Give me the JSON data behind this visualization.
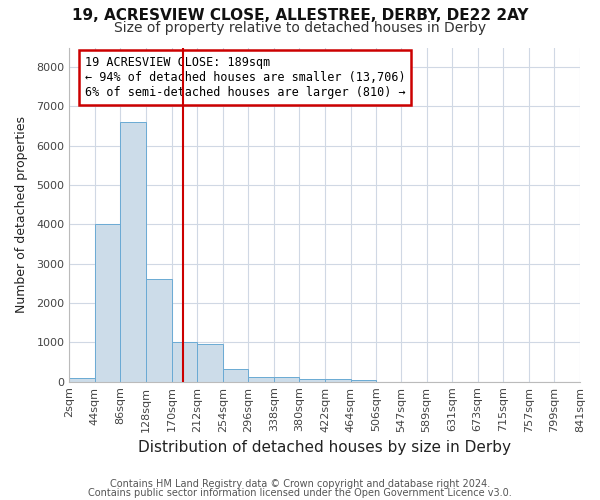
{
  "title1": "19, ACRESVIEW CLOSE, ALLESTREE, DERBY, DE22 2AY",
  "title2": "Size of property relative to detached houses in Derby",
  "xlabel": "Distribution of detached houses by size in Derby",
  "ylabel": "Number of detached properties",
  "bin_edges": [
    2,
    44,
    86,
    128,
    170,
    212,
    254,
    296,
    338,
    380,
    422,
    464,
    506,
    547,
    589,
    631,
    673,
    715,
    757,
    799,
    841
  ],
  "bar_heights": [
    100,
    4000,
    6600,
    2600,
    1000,
    950,
    330,
    130,
    110,
    80,
    60,
    55,
    0,
    0,
    0,
    0,
    0,
    0,
    0,
    0
  ],
  "bar_color": "#ccdce9",
  "bar_edgecolor": "#6aaad4",
  "property_size": 189,
  "vline_color": "#cc0000",
  "annotation_text": "19 ACRESVIEW CLOSE: 189sqm\n← 94% of detached houses are smaller (13,706)\n6% of semi-detached houses are larger (810) →",
  "annotation_box_edgecolor": "#cc0000",
  "ylim": [
    0,
    8500
  ],
  "yticks": [
    0,
    1000,
    2000,
    3000,
    4000,
    5000,
    6000,
    7000,
    8000
  ],
  "footnote1": "Contains HM Land Registry data © Crown copyright and database right 2024.",
  "footnote2": "Contains public sector information licensed under the Open Government Licence v3.0.",
  "background_color": "#ffffff",
  "plot_bg_color": "#ffffff",
  "grid_color": "#d0d8e4",
  "title1_fontsize": 11,
  "title2_fontsize": 10,
  "xlabel_fontsize": 11,
  "ylabel_fontsize": 9,
  "tick_fontsize": 8,
  "footnote_fontsize": 7
}
